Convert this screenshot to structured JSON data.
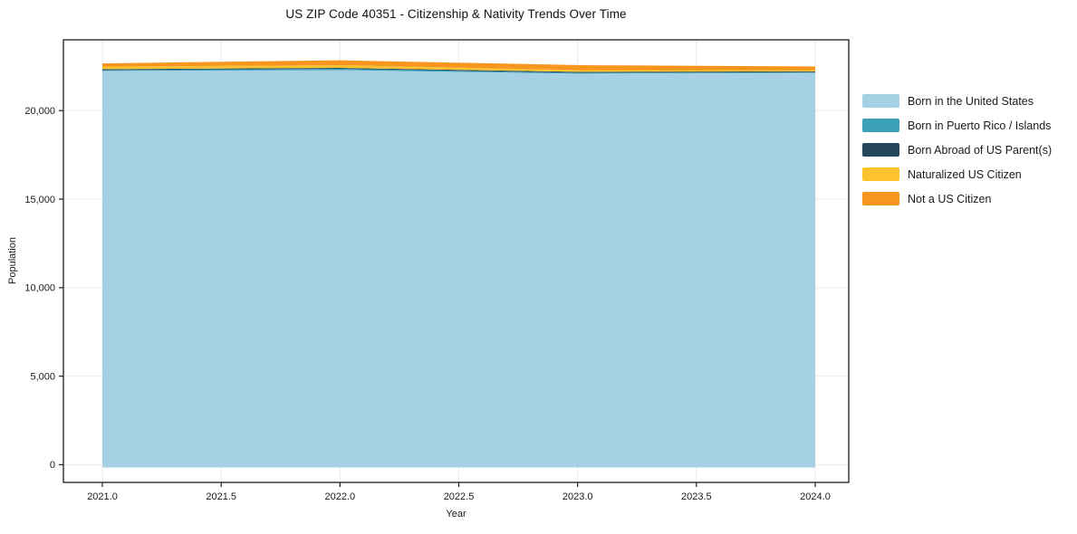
{
  "chart_data": {
    "type": "area",
    "stacked": true,
    "title": "US ZIP Code 40351 - Citizenship & Nativity Trends Over Time",
    "xlabel": "Year",
    "ylabel": "Population",
    "x": [
      2021,
      2022,
      2023,
      2024
    ],
    "series": [
      {
        "name": "Born in the United States",
        "color": "#a6d1e5",
        "values": [
          22240,
          22290,
          22090,
          22140
        ]
      },
      {
        "name": "Born in Puerto Rico / Islands",
        "color": "#3ba1bb",
        "values": [
          50,
          75,
          50,
          25
        ]
      },
      {
        "name": "Born Abroad of US Parent(s)",
        "color": "#26485c",
        "values": [
          50,
          50,
          50,
          50
        ]
      },
      {
        "name": "Naturalized US Citizen",
        "color": "#fdc32f",
        "values": [
          150,
          150,
          100,
          75
        ]
      },
      {
        "name": "Not a US Citizen",
        "color": "#f7951f",
        "values": [
          180,
          280,
          280,
          205
        ]
      }
    ],
    "xlim": [
      2020.836,
      2024.141
    ],
    "ylim": [
      -1000,
      24000
    ],
    "x_ticks": {
      "values": [
        2021.0,
        2021.5,
        2022.0,
        2022.5,
        2023.0,
        2023.5,
        2024.0
      ],
      "labels": [
        "2021.0",
        "2021.5",
        "2022.0",
        "2022.5",
        "2023.0",
        "2023.5",
        "2024.0"
      ]
    },
    "y_ticks": {
      "values": [
        0,
        5000,
        10000,
        15000,
        20000
      ],
      "labels": [
        "0",
        "5,000",
        "10,000",
        "15,000",
        "20,000"
      ]
    },
    "grid": true,
    "legend_position": "right-outside"
  },
  "colors": {
    "grid": "#ebebeb",
    "spine": "#1c1c1c",
    "tick_text": "#1a1a1a",
    "background": "#ffffff"
  }
}
